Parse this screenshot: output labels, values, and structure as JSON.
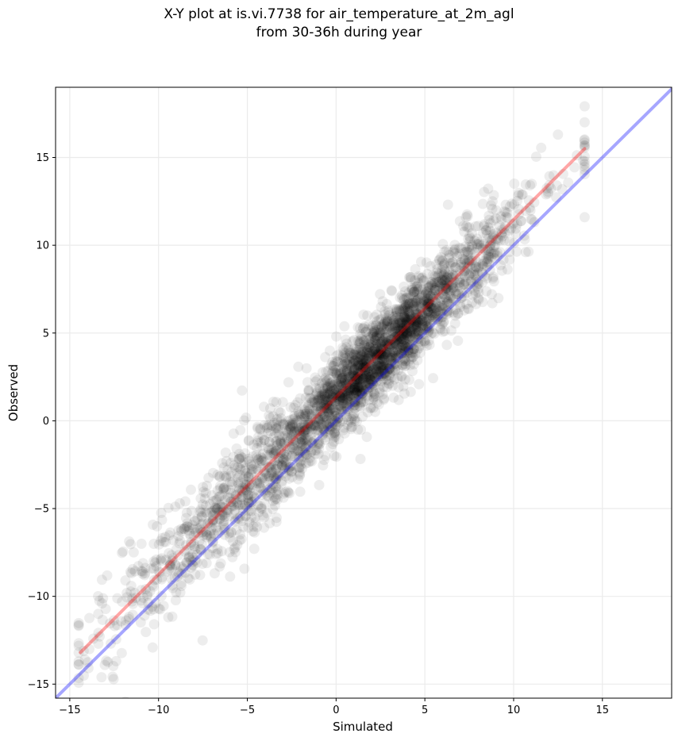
{
  "chart_data": {
    "type": "scatter",
    "title": "X-Y plot at is.vi.7738 for air_temperature_at_2m_agl",
    "subtitle": "from 30-36h during year",
    "xlabel": "Simulated",
    "ylabel": "Observed",
    "xlim": [
      -15.8,
      18.9
    ],
    "ylim": [
      -15.8,
      19.0
    ],
    "xticks": [
      -15,
      -10,
      -5,
      0,
      5,
      10,
      15
    ],
    "yticks": [
      -15,
      -10,
      -5,
      0,
      5,
      10,
      15
    ],
    "xtick_labels": [
      "−15",
      "−10",
      "−5",
      "0",
      "5",
      "10",
      "15"
    ],
    "ytick_labels": [
      "−15",
      "−10",
      "−5",
      "0",
      "5",
      "10",
      "15"
    ],
    "grid": true,
    "point_color": "#000000",
    "point_alpha": 0.07,
    "point_count_approx": 3000,
    "cloud_summary": {
      "x_range": [
        -14.5,
        14.0
      ],
      "relationship": "Observed ≈ 1.0 × Simulated + 1.3",
      "spread_std": 1.2,
      "dense_center": [
        2.5,
        3.5
      ]
    },
    "lines": [
      {
        "kind": "fit",
        "color": "#ff0000",
        "alpha": 0.35,
        "x": [
          -14.4,
          14.0
        ],
        "y": [
          -13.2,
          15.5
        ]
      },
      {
        "kind": "identity",
        "color": "#0000ff",
        "alpha": 0.35,
        "x": [
          -15.8,
          18.9
        ],
        "y": [
          -15.8,
          18.9
        ]
      }
    ]
  }
}
